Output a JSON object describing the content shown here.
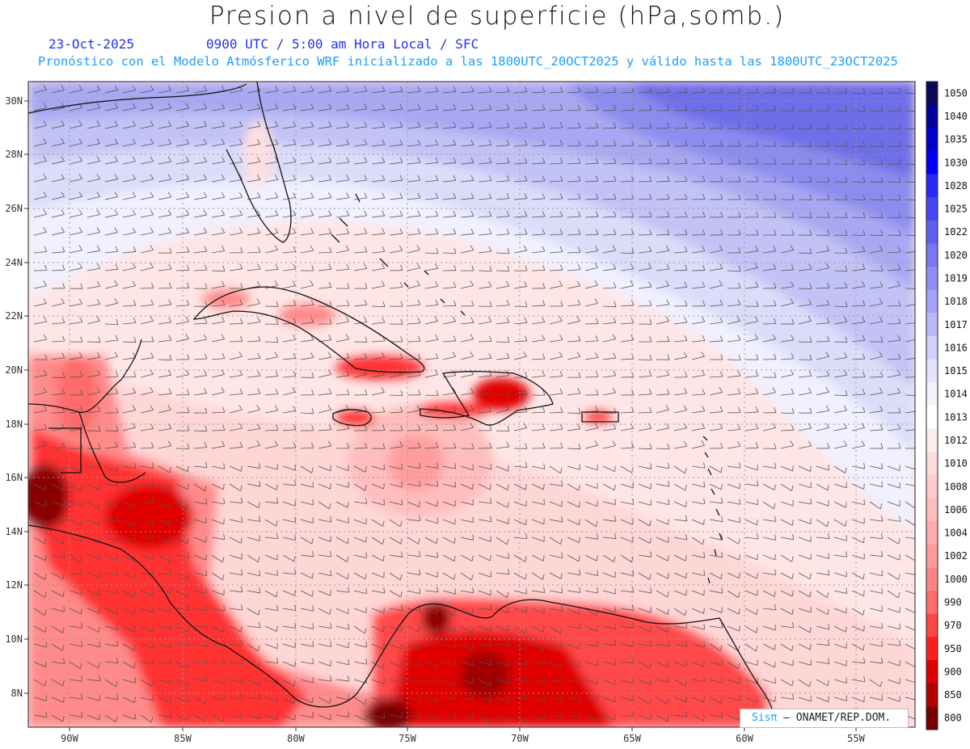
{
  "header": {
    "title": "Presion a nivel de superficie (hPa,somb.)",
    "date": "23-Oct-2025",
    "time_line": "0900 UTC / 5:00 am Hora Local / SFC",
    "model_line": "Pronóstico con el Modelo Atmósferico WRF inicializado a las 1800UTC_20OCT2025 y válido hasta las  1800UTC_23OCT2025"
  },
  "map": {
    "lon_labels": [
      "90W",
      "85W",
      "80W",
      "75W",
      "70W",
      "65W",
      "60W",
      "55W"
    ],
    "lat_labels": [
      "30N",
      "28N",
      "26N",
      "24N",
      "22N",
      "20N",
      "18N",
      "16N",
      "14N",
      "12N",
      "10N",
      "8N"
    ]
  },
  "colorbar": {
    "levels": [
      "1050",
      "1040",
      "1035",
      "1030",
      "1028",
      "1025",
      "1022",
      "1020",
      "1019",
      "1018",
      "1017",
      "1016",
      "1015",
      "1014",
      "1013",
      "1012",
      "1010",
      "1008",
      "1006",
      "1004",
      "1002",
      "1000",
      "990",
      "970",
      "950",
      "900",
      "850",
      "800"
    ],
    "colors": [
      "#0a0a58",
      "#00009a",
      "#0000cd",
      "#0000ff",
      "#2828ff",
      "#4646f5",
      "#5f5ff0",
      "#7878f5",
      "#8e8ef7",
      "#a4a4f8",
      "#babafa",
      "#d0d0fb",
      "#e4e4fd",
      "#f4f4ff",
      "#ffffff",
      "#ffecec",
      "#ffdcdc",
      "#ffcccc",
      "#ffbcbc",
      "#ffabab",
      "#ff9a9a",
      "#ff8585",
      "#ff6a6a",
      "#ff4545",
      "#ff1c1c",
      "#e10000",
      "#b40000",
      "#780000"
    ]
  },
  "credit": {
    "brand": "Sisπ",
    "text": "– ONAMET/REP.DOM."
  }
}
